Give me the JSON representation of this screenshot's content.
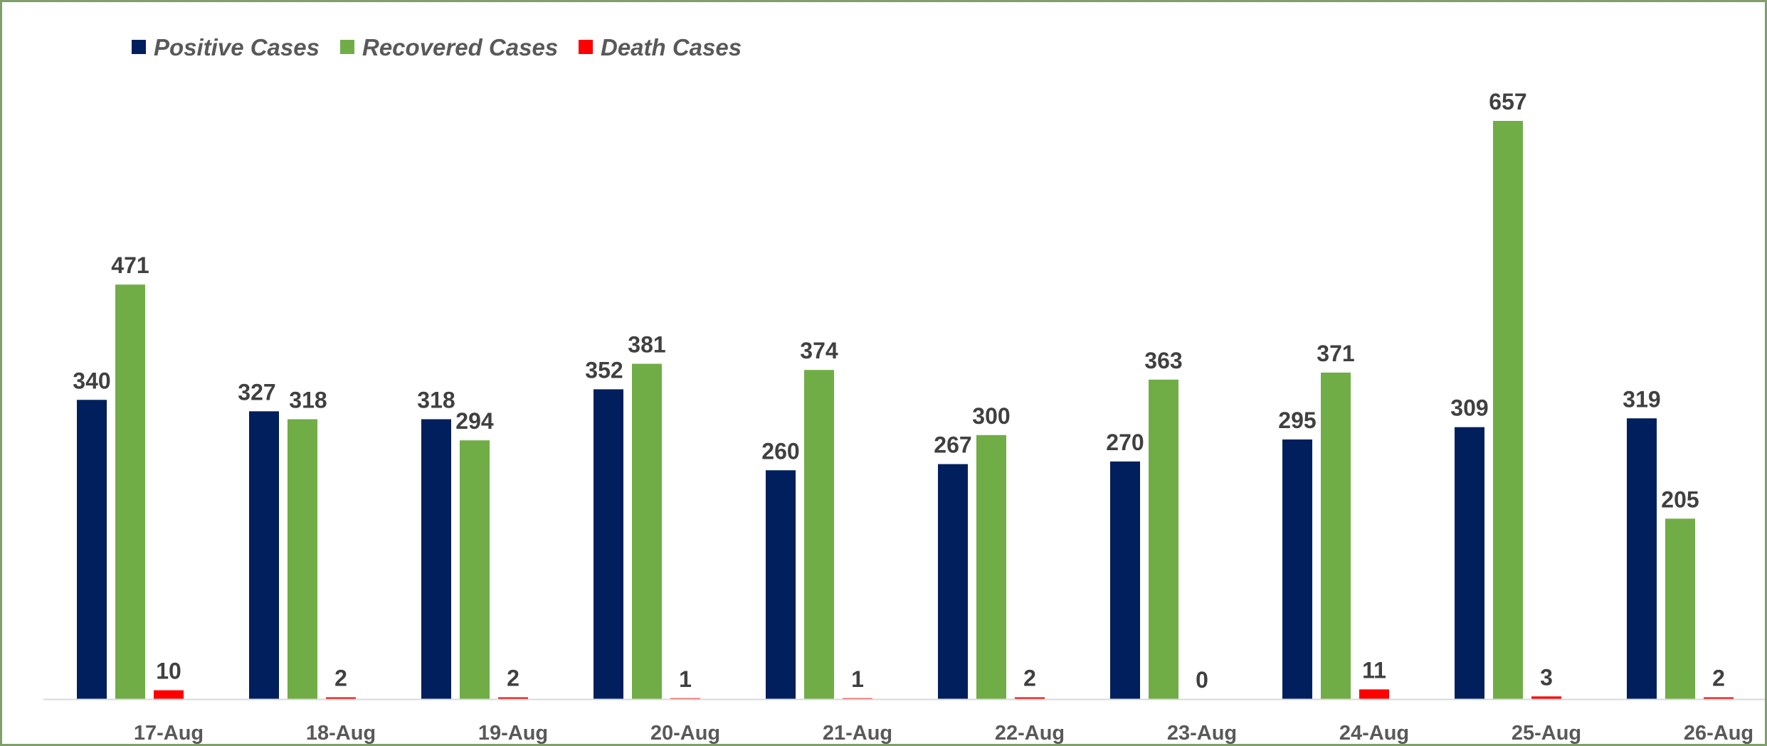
{
  "chart_data": {
    "type": "bar",
    "title": "",
    "xlabel": "",
    "ylabel": "",
    "ylim": [
      0,
      700
    ],
    "grid": false,
    "legend_position": "top-left",
    "categories": [
      "17-Aug",
      "18-Aug",
      "19-Aug",
      "20-Aug",
      "21-Aug",
      "22-Aug",
      "23-Aug",
      "24-Aug",
      "25-Aug",
      "26-Aug"
    ],
    "series": [
      {
        "name": "Positive Cases",
        "color": "#001f5c",
        "values": [
          340,
          327,
          318,
          352,
          260,
          267,
          270,
          295,
          309,
          319
        ]
      },
      {
        "name": "Recovered Cases",
        "color": "#70ad47",
        "values": [
          471,
          318,
          294,
          381,
          374,
          300,
          363,
          371,
          657,
          205
        ]
      },
      {
        "name": "Death Cases",
        "color": "#ff0000",
        "values": [
          10,
          2,
          2,
          1,
          1,
          2,
          0,
          11,
          3,
          2
        ]
      }
    ]
  }
}
